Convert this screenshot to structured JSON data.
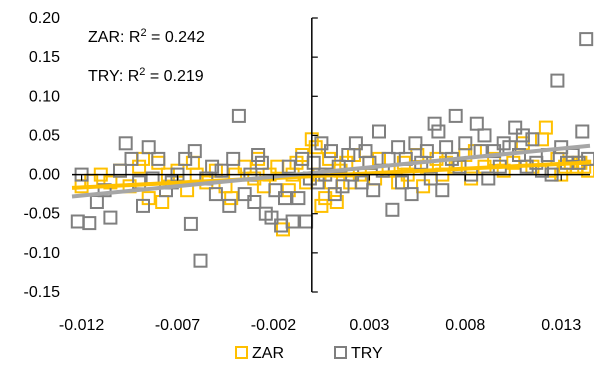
{
  "chart_data": {
    "type": "scatter",
    "title": "",
    "xlabel": "",
    "ylabel": "",
    "xlim": [
      -0.0125,
      0.0145
    ],
    "ylim": [
      -0.15,
      0.2
    ],
    "x_ticks": [
      -0.012,
      -0.007,
      -0.002,
      0.003,
      0.008,
      0.013
    ],
    "x_tick_labels": [
      "-0.012",
      "-0.007",
      "-0.002",
      "0.003",
      "0.008",
      "0.013"
    ],
    "y_ticks": [
      -0.15,
      -0.1,
      -0.05,
      0.0,
      0.05,
      0.1,
      0.15,
      0.2
    ],
    "y_tick_labels": [
      "-0.15",
      "-0.10",
      "-0.05",
      "0.00",
      "0.05",
      "0.10",
      "0.15",
      "0.20"
    ],
    "grid": false,
    "legend_position": "bottom",
    "annotations": [
      {
        "series": "ZAR",
        "prefix": "ZAR: R",
        "sup": "2",
        "suffix": " = 0.242"
      },
      {
        "series": "TRY",
        "prefix": "TRY: R",
        "sup": "2",
        "suffix": " = 0.219"
      }
    ],
    "series": [
      {
        "name": "ZAR",
        "color": "#FFC000",
        "marker": "hollow-square",
        "trendline": {
          "slope": 1.2,
          "intercept": -0.002,
          "color": "#FFC000"
        },
        "points": [
          [
            -0.012,
            -0.015
          ],
          [
            -0.0115,
            -0.008
          ],
          [
            -0.011,
            0.0
          ],
          [
            -0.0105,
            -0.01
          ],
          [
            -0.01,
            0.005
          ],
          [
            -0.0095,
            -0.015
          ],
          [
            -0.009,
            0.01
          ],
          [
            -0.0088,
            0.02
          ],
          [
            -0.0085,
            -0.03
          ],
          [
            -0.008,
            0.015
          ],
          [
            -0.0078,
            -0.035
          ],
          [
            -0.0075,
            0.0
          ],
          [
            -0.007,
            0.005
          ],
          [
            -0.0065,
            -0.02
          ],
          [
            -0.0062,
            0.015
          ],
          [
            -0.006,
            0.0
          ],
          [
            -0.0055,
            -0.01
          ],
          [
            -0.005,
            0.005
          ],
          [
            -0.0045,
            -0.015
          ],
          [
            -0.0042,
            -0.03
          ],
          [
            -0.004,
            0.0
          ],
          [
            -0.0035,
            0.01
          ],
          [
            -0.003,
            -0.005
          ],
          [
            -0.0028,
            0.02
          ],
          [
            -0.0025,
            -0.015
          ],
          [
            -0.0022,
            0.0
          ],
          [
            -0.0018,
            0.01
          ],
          [
            -0.0015,
            -0.07
          ],
          [
            -0.0012,
            -0.02
          ],
          [
            -0.001,
            0.0
          ],
          [
            -0.0008,
            0.015
          ],
          [
            -0.0005,
            0.025
          ],
          [
            -0.0003,
            -0.01
          ],
          [
            0.0,
            0.045
          ],
          [
            0.0002,
            0.035
          ],
          [
            0.0004,
            0.0
          ],
          [
            0.0005,
            -0.04
          ],
          [
            0.0007,
            -0.03
          ],
          [
            0.0009,
            0.02
          ],
          [
            0.001,
            -0.01
          ],
          [
            0.0013,
            -0.035
          ],
          [
            0.0015,
            0.005
          ],
          [
            0.0018,
            0.015
          ],
          [
            0.002,
            -0.01
          ],
          [
            0.0022,
            0.025
          ],
          [
            0.0025,
            0.0
          ],
          [
            0.003,
            0.015
          ],
          [
            0.0033,
            -0.005
          ],
          [
            0.0035,
            0.02
          ],
          [
            0.004,
            0.005
          ],
          [
            0.0045,
            -0.01
          ],
          [
            0.0048,
            0.015
          ],
          [
            0.005,
            0.0
          ],
          [
            0.0055,
            0.025
          ],
          [
            0.0058,
            -0.015
          ],
          [
            0.006,
            0.01
          ],
          [
            0.0065,
            0.02
          ],
          [
            0.0068,
            0.0
          ],
          [
            0.007,
            0.015
          ],
          [
            0.0075,
            0.01
          ],
          [
            0.008,
            0.025
          ],
          [
            0.0083,
            -0.005
          ],
          [
            0.0085,
            0.03
          ],
          [
            0.009,
            0.01
          ],
          [
            0.0095,
            0.02
          ],
          [
            0.01,
            0.005
          ],
          [
            0.0105,
            0.015
          ],
          [
            0.011,
            0.04
          ],
          [
            0.0115,
            0.01
          ],
          [
            0.012,
            0.045
          ],
          [
            0.0122,
            0.06
          ],
          [
            0.0125,
            0.005
          ],
          [
            0.0128,
            0.02
          ],
          [
            0.013,
            0.0
          ],
          [
            0.0132,
            0.01
          ],
          [
            0.0135,
            0.015
          ],
          [
            0.0138,
            0.01
          ],
          [
            0.014,
            0.015
          ],
          [
            0.0142,
            0.01
          ],
          [
            0.0144,
            0.005
          ]
        ]
      },
      {
        "name": "TRY",
        "color": "#7F7F7F",
        "marker": "hollow-square",
        "trendline": {
          "slope": 2.4,
          "intercept": 0.002,
          "color": "#A6A6A6"
        },
        "points": [
          [
            -0.0122,
            -0.06
          ],
          [
            -0.012,
            0.0
          ],
          [
            -0.0116,
            -0.062
          ],
          [
            -0.0112,
            -0.035
          ],
          [
            -0.0108,
            -0.02
          ],
          [
            -0.0105,
            -0.055
          ],
          [
            -0.01,
            0.005
          ],
          [
            -0.0097,
            0.04
          ],
          [
            -0.0094,
            0.02
          ],
          [
            -0.009,
            -0.01
          ],
          [
            -0.0088,
            -0.04
          ],
          [
            -0.0085,
            0.035
          ],
          [
            -0.0083,
            -0.005
          ],
          [
            -0.008,
            0.02
          ],
          [
            -0.0076,
            -0.02
          ],
          [
            -0.0073,
            -0.01
          ],
          [
            -0.007,
            0.0
          ],
          [
            -0.0066,
            0.02
          ],
          [
            -0.0063,
            -0.063
          ],
          [
            -0.0061,
            0.03
          ],
          [
            -0.0058,
            -0.11
          ],
          [
            -0.0055,
            -0.005
          ],
          [
            -0.0052,
            0.01
          ],
          [
            -0.005,
            -0.025
          ],
          [
            -0.0047,
            0.005
          ],
          [
            -0.0043,
            -0.04
          ],
          [
            -0.0041,
            0.02
          ],
          [
            -0.0038,
            0.075
          ],
          [
            -0.0035,
            -0.025
          ],
          [
            -0.0032,
            0.0
          ],
          [
            -0.003,
            -0.035
          ],
          [
            -0.0028,
            0.025
          ],
          [
            -0.0026,
            0.015
          ],
          [
            -0.0024,
            -0.05
          ],
          [
            -0.0021,
            -0.055
          ],
          [
            -0.0019,
            -0.02
          ],
          [
            -0.0016,
            -0.065
          ],
          [
            -0.0014,
            -0.03
          ],
          [
            -0.0012,
            0.01
          ],
          [
            -0.001,
            -0.06
          ],
          [
            -0.0007,
            -0.03
          ],
          [
            -0.0005,
            0.02
          ],
          [
            -0.0003,
            -0.06
          ],
          [
            -0.0001,
            -0.005
          ],
          [
            0.0001,
            0.015
          ],
          [
            0.0003,
            -0.01
          ],
          [
            0.0005,
            0.04
          ],
          [
            0.0007,
            0.0
          ],
          [
            0.001,
            0.03
          ],
          [
            0.0012,
            -0.025
          ],
          [
            0.0014,
            0.01
          ],
          [
            0.0016,
            -0.015
          ],
          [
            0.0019,
            0.025
          ],
          [
            0.0021,
            0.0
          ],
          [
            0.0023,
            0.04
          ],
          [
            0.0026,
            -0.01
          ],
          [
            0.0028,
            0.03
          ],
          [
            0.003,
            0.015
          ],
          [
            0.0032,
            -0.02
          ],
          [
            0.0035,
            0.055
          ],
          [
            0.0037,
            0.005
          ],
          [
            0.004,
            0.02
          ],
          [
            0.0042,
            -0.045
          ],
          [
            0.0045,
            0.035
          ],
          [
            0.0047,
            -0.01
          ],
          [
            0.0049,
            0.02
          ],
          [
            0.0052,
            -0.025
          ],
          [
            0.0054,
            0.04
          ],
          [
            0.0057,
            0.015
          ],
          [
            0.006,
            0.03
          ],
          [
            0.0062,
            -0.005
          ],
          [
            0.0064,
            0.065
          ],
          [
            0.0066,
            0.055
          ],
          [
            0.0068,
            -0.02
          ],
          [
            0.007,
            0.035
          ],
          [
            0.0073,
            0.02
          ],
          [
            0.0075,
            0.075
          ],
          [
            0.0077,
            0.01
          ],
          [
            0.008,
            0.04
          ],
          [
            0.0083,
            0.0
          ],
          [
            0.0086,
            0.065
          ],
          [
            0.0088,
            0.03
          ],
          [
            0.009,
            0.05
          ],
          [
            0.0092,
            -0.005
          ],
          [
            0.0095,
            0.03
          ],
          [
            0.0098,
            0.01
          ],
          [
            0.01,
            0.04
          ],
          [
            0.0103,
            0.035
          ],
          [
            0.0106,
            0.06
          ],
          [
            0.0108,
            0.025
          ],
          [
            0.011,
            0.05
          ],
          [
            0.0112,
            0.01
          ],
          [
            0.0115,
            0.045
          ],
          [
            0.0117,
            0.015
          ],
          [
            0.012,
            0.005
          ],
          [
            0.0123,
            0.025
          ],
          [
            0.0125,
            0.0
          ],
          [
            0.0128,
            0.12
          ],
          [
            0.013,
            0.035
          ],
          [
            0.0133,
            0.015
          ],
          [
            0.0136,
            0.025
          ],
          [
            0.0139,
            0.015
          ],
          [
            0.0141,
            0.055
          ],
          [
            0.0143,
            0.173
          ],
          [
            0.0144,
            0.02
          ]
        ]
      }
    ]
  }
}
